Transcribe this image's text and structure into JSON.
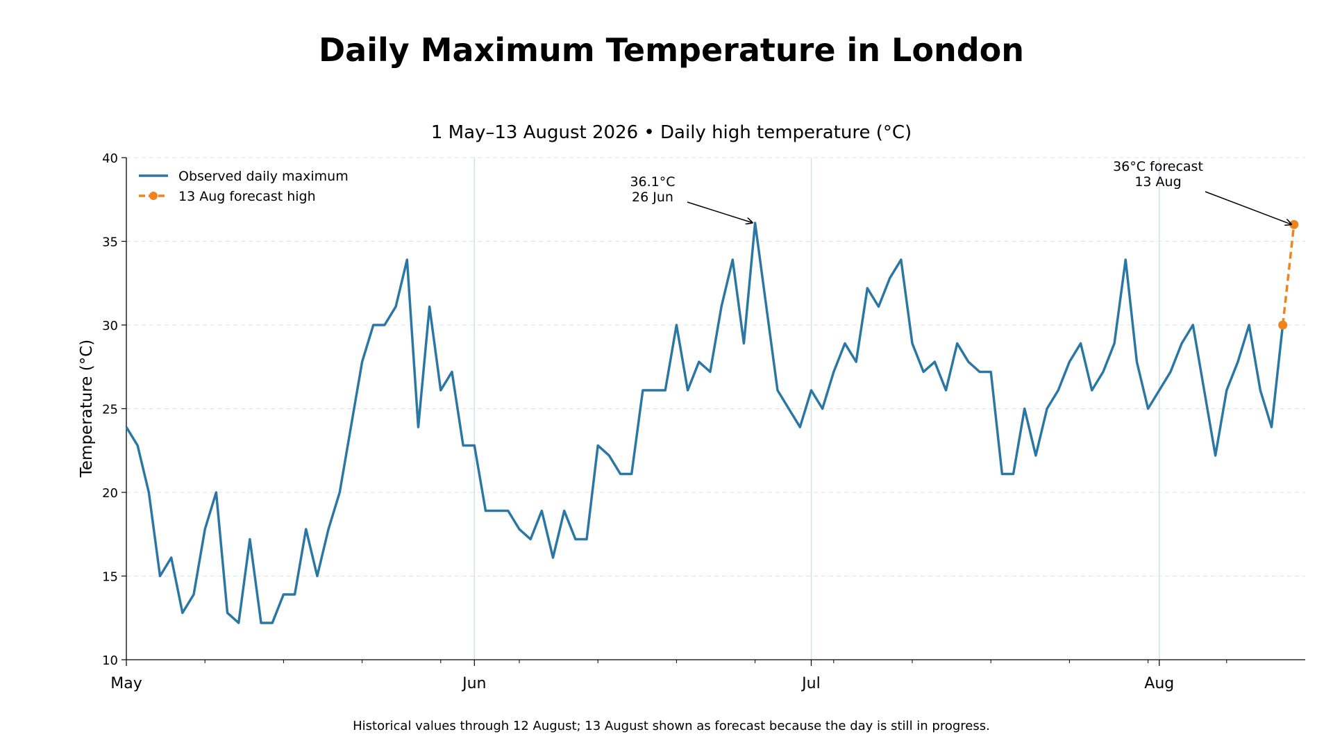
{
  "chart_data": {
    "type": "line",
    "title": "Daily Maximum Temperature in London",
    "subtitle": "1 May–13 August 2026  •  Daily high temperature (°C)",
    "xlabel": "",
    "ylabel": "Temperature (°C)",
    "ylim": [
      10,
      40
    ],
    "yticks": [
      10,
      15,
      20,
      25,
      30,
      35,
      40
    ],
    "xlim": [
      "2026-05-01",
      "2026-08-14"
    ],
    "xticks": [
      {
        "date": "2026-05-01",
        "label": "May"
      },
      {
        "date": "2026-06-01",
        "label": "Jun"
      },
      {
        "date": "2026-07-01",
        "label": "Jul"
      },
      {
        "date": "2026-08-01",
        "label": "Aug"
      }
    ],
    "grid": "horizontal dashed",
    "legend_position": "top-left",
    "series": [
      {
        "name": "Observed daily maximum",
        "color": "#2a77a3",
        "style": "solid",
        "start_date": "2026-05-01",
        "values": [
          23.9,
          22.8,
          20.0,
          15.0,
          16.1,
          12.8,
          13.9,
          17.8,
          20.0,
          12.8,
          12.2,
          17.2,
          12.2,
          12.2,
          13.9,
          13.9,
          17.8,
          15.0,
          17.8,
          20.0,
          23.9,
          27.8,
          30.0,
          30.0,
          31.1,
          33.9,
          23.9,
          31.1,
          26.1,
          27.2,
          22.8,
          22.8,
          18.9,
          18.9,
          18.9,
          17.8,
          17.2,
          18.9,
          16.1,
          18.9,
          17.2,
          17.2,
          22.8,
          22.2,
          21.1,
          21.1,
          26.1,
          26.1,
          26.1,
          30.0,
          26.1,
          27.8,
          27.2,
          31.1,
          33.9,
          28.9,
          36.1,
          31.1,
          26.1,
          25.0,
          23.9,
          26.1,
          25.0,
          27.2,
          28.9,
          27.8,
          32.2,
          31.1,
          32.8,
          33.9,
          28.9,
          27.2,
          27.8,
          26.1,
          28.9,
          27.8,
          27.2,
          27.2,
          21.1,
          21.1,
          25.0,
          22.2,
          25.0,
          26.1,
          27.8,
          28.9,
          26.1,
          27.2,
          28.9,
          33.9,
          27.8,
          25.0,
          26.1,
          27.2,
          28.9,
          30.0,
          26.1,
          22.2,
          26.1,
          27.8,
          30.0,
          26.1,
          23.9,
          30.0
        ]
      },
      {
        "name": "13 Aug forecast high",
        "color": "#f0841c",
        "style": "dashed",
        "points": [
          {
            "date": "2026-08-12",
            "value": 30.0
          },
          {
            "date": "2026-08-13",
            "value": 36.0
          }
        ]
      }
    ],
    "annotations": [
      {
        "lines": [
          "36.1°C",
          "26 Jun"
        ],
        "date": "2026-06-26",
        "value": 36.1
      },
      {
        "lines": [
          "36°C forecast",
          "13 Aug"
        ],
        "date": "2026-08-13",
        "value": 36.0
      }
    ],
    "footnote": "Historical values through 12 August; 13 August shown as forecast because the day is still in progress."
  }
}
